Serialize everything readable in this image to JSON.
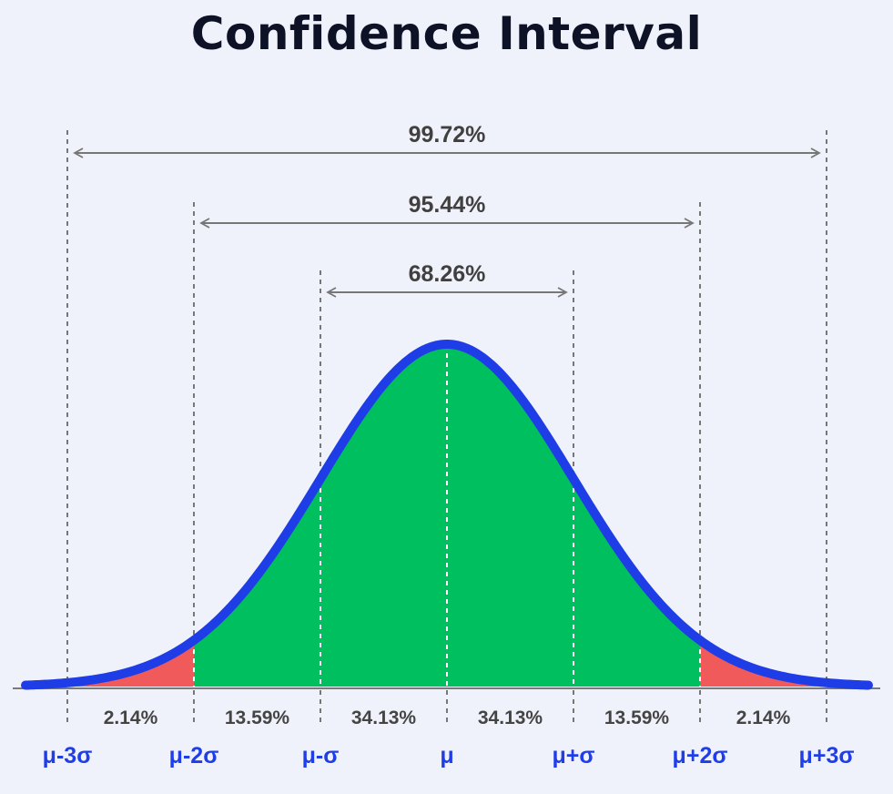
{
  "title": "Confidence Interval",
  "colors": {
    "curve": "#1f3de6",
    "inner_fill": "#00bf5f",
    "tail_fill": "#f15a5a",
    "sigma_label": "#1f3ee8",
    "guide": "#777777",
    "arrow": "#777777"
  },
  "sigma_labels": [
    "μ-3σ",
    "μ-2σ",
    "μ-σ",
    "μ",
    "μ+σ",
    "μ+2σ",
    "μ+3σ"
  ],
  "segments": [
    "2.14%",
    "13.59%",
    "34.13%",
    "34.13%",
    "13.59%",
    "2.14%"
  ],
  "intervals": [
    {
      "sigma": 3,
      "label": "99.72%"
    },
    {
      "sigma": 2,
      "label": "95.44%"
    },
    {
      "sigma": 1,
      "label": "68.26%"
    }
  ]
}
